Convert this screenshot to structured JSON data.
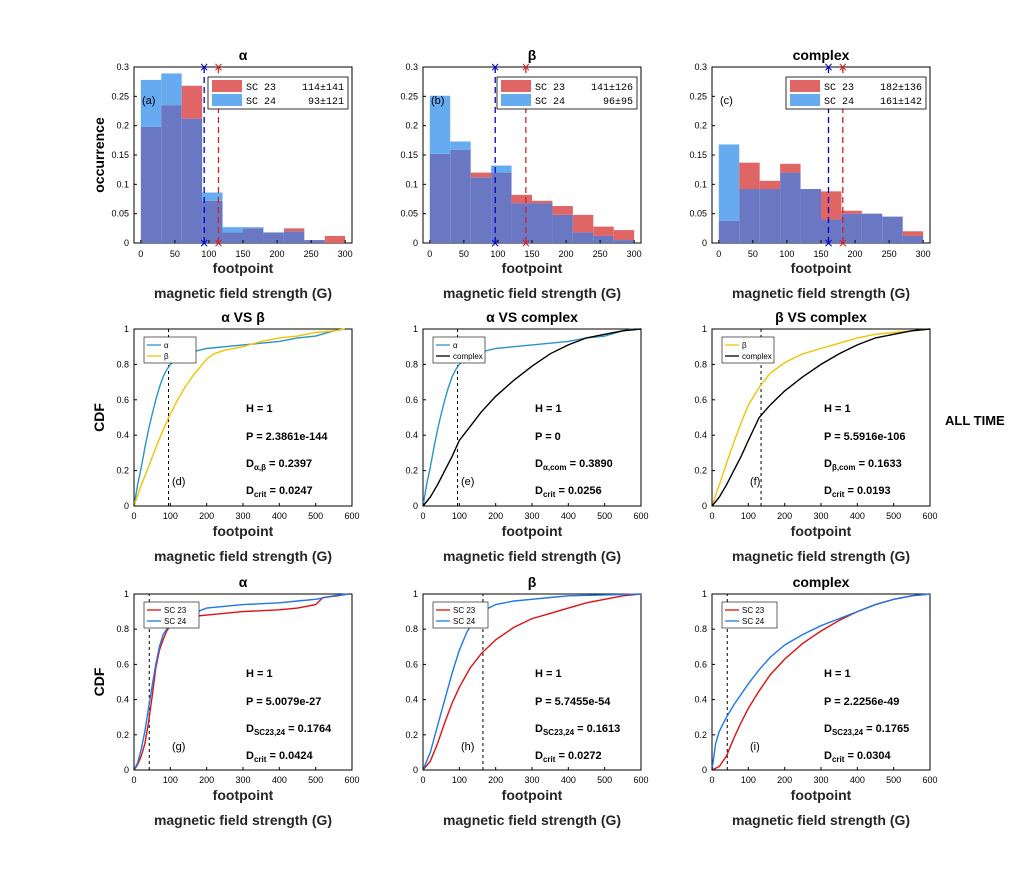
{
  "side_label": "ALL TIME",
  "colors": {
    "sc23_bar": "#e06666",
    "sc24_bar": "#66aaf0",
    "overlap": "#6a78c4",
    "blue_line": "#0000cc",
    "red_line": "#d62020",
    "alpha_cdf": "#2b93c8",
    "beta_cdf": "#f2c300",
    "complex_cdf": "#000000",
    "sc23_cdf": "#e01010",
    "sc24_cdf": "#1e78e8"
  },
  "chart_data": [
    {
      "type": "bar",
      "id": "a",
      "title": "α",
      "panel_label": "(a)",
      "xlabel": "footpoint",
      "xlabel2": "magnetic field strength (G)",
      "ylabel": "occurrence",
      "xlim": [
        -10,
        310
      ],
      "ylim": [
        0,
        0.3
      ],
      "xticks": [
        "0",
        "50",
        "100",
        "150",
        "200",
        "250",
        "300"
      ],
      "yticks": [
        "0",
        "0.05",
        "0.1",
        "0.15",
        "0.2",
        "0.25",
        "0.3"
      ],
      "bin_edges": [
        0,
        30,
        60,
        90,
        120,
        150,
        180,
        210,
        240,
        270,
        300
      ],
      "series": [
        {
          "name": "SC 23",
          "values": [
            0.198,
            0.235,
            0.268,
            0.072,
            0.018,
            0.025,
            0.018,
            0.025,
            0.005,
            0.012
          ]
        },
        {
          "name": "SC 24",
          "values": [
            0.278,
            0.289,
            0.212,
            0.086,
            0.027,
            0.027,
            0.018,
            0.02,
            0.005,
            0
          ]
        }
      ],
      "legend": [
        {
          "label": "SC 23",
          "value": "114±141"
        },
        {
          "label": "SC 24",
          "value": "93±121"
        }
      ],
      "mean_lines": [
        {
          "series": "SC 24",
          "x": 93
        },
        {
          "series": "SC 23",
          "x": 114
        }
      ]
    },
    {
      "type": "bar",
      "id": "b",
      "title": "β",
      "panel_label": "(b)",
      "xlabel": "footpoint",
      "xlabel2": "magnetic field strength (G)",
      "ylabel": "",
      "xlim": [
        -10,
        310
      ],
      "ylim": [
        0,
        0.3
      ],
      "xticks": [
        "0",
        "50",
        "100",
        "150",
        "200",
        "250",
        "300"
      ],
      "yticks": [
        "0",
        "0.05",
        "0.1",
        "0.15",
        "0.2",
        "0.25",
        "0.3"
      ],
      "bin_edges": [
        0,
        30,
        60,
        90,
        120,
        150,
        180,
        210,
        240,
        270,
        300
      ],
      "series": [
        {
          "name": "SC 23",
          "values": [
            0.152,
            0.159,
            0.12,
            0.12,
            0.082,
            0.072,
            0.063,
            0.048,
            0.028,
            0.022
          ]
        },
        {
          "name": "SC 24",
          "values": [
            0.251,
            0.173,
            0.112,
            0.132,
            0.068,
            0.068,
            0.048,
            0.018,
            0.012,
            0.005
          ]
        }
      ],
      "legend": [
        {
          "label": "SC 23",
          "value": "141±126"
        },
        {
          "label": "SC 24",
          "value": "96±95"
        }
      ],
      "mean_lines": [
        {
          "series": "SC 24",
          "x": 96
        },
        {
          "series": "SC 23",
          "x": 141
        }
      ]
    },
    {
      "type": "bar",
      "id": "c",
      "title": "complex",
      "panel_label": "(c)",
      "xlabel": "footpoint",
      "xlabel2": "magnetic field strength (G)",
      "ylabel": "",
      "xlim": [
        -10,
        310
      ],
      "ylim": [
        0,
        0.3
      ],
      "xticks": [
        "0",
        "50",
        "100",
        "150",
        "200",
        "250",
        "300"
      ],
      "yticks": [
        "0",
        "0.05",
        "0.1",
        "0.15",
        "0.2",
        "0.25",
        "0.3"
      ],
      "bin_edges": [
        0,
        30,
        60,
        90,
        120,
        150,
        180,
        210,
        240,
        270,
        300
      ],
      "series": [
        {
          "name": "SC 23",
          "values": [
            0.038,
            0.137,
            0.106,
            0.135,
            0.092,
            0.088,
            0.055,
            0.05,
            0.045,
            0.02
          ]
        },
        {
          "name": "SC 24",
          "values": [
            0.168,
            0.092,
            0.092,
            0.12,
            0.092,
            0.04,
            0.05,
            0.05,
            0.045,
            0.012
          ]
        }
      ],
      "legend": [
        {
          "label": "SC 23",
          "value": "182±136"
        },
        {
          "label": "SC 24",
          "value": "161±142"
        }
      ],
      "mean_lines": [
        {
          "series": "SC 24",
          "x": 161
        },
        {
          "series": "SC 23",
          "x": 182
        }
      ]
    },
    {
      "type": "line",
      "id": "d",
      "title": "α VS β",
      "panel_label": "(d)",
      "xlabel": "footpoint",
      "xlabel2": "magnetic field strength (G)",
      "ylabel": "CDF",
      "xlim": [
        0,
        600
      ],
      "ylim": [
        0,
        1
      ],
      "xticks": [
        "0",
        "100",
        "200",
        "300",
        "400",
        "500",
        "600"
      ],
      "yticks": [
        "0",
        "0.2",
        "0.4",
        "0.6",
        "0.8",
        "1"
      ],
      "vline": 95,
      "series": [
        {
          "name": "α",
          "color_key": "alpha_cdf",
          "x": [
            0,
            10,
            20,
            30,
            40,
            50,
            60,
            70,
            80,
            90,
            100,
            110,
            120,
            140,
            160,
            180,
            200,
            250,
            300,
            350,
            400,
            450,
            500,
            550,
            580
          ],
          "y": [
            0,
            0.12,
            0.22,
            0.33,
            0.43,
            0.52,
            0.6,
            0.67,
            0.73,
            0.77,
            0.8,
            0.82,
            0.84,
            0.86,
            0.87,
            0.88,
            0.89,
            0.9,
            0.91,
            0.92,
            0.93,
            0.95,
            0.96,
            0.99,
            1.0
          ]
        },
        {
          "name": "β",
          "color_key": "beta_cdf",
          "x": [
            0,
            10,
            20,
            40,
            60,
            80,
            100,
            120,
            140,
            160,
            180,
            200,
            220,
            250,
            300,
            350,
            400,
            450,
            500,
            550,
            580
          ],
          "y": [
            0,
            0.06,
            0.12,
            0.22,
            0.33,
            0.43,
            0.52,
            0.6,
            0.67,
            0.73,
            0.78,
            0.83,
            0.86,
            0.88,
            0.9,
            0.93,
            0.95,
            0.96,
            0.98,
            0.99,
            1.0
          ]
        }
      ],
      "stats": {
        "H": "H = 1",
        "P": "P = 2.3861e-144",
        "D": "D",
        "Dsub": "α,β",
        "Dval": " = 0.2397",
        "Dc": "D",
        "Dcsub": "crit",
        "Dcval": " = 0.0247"
      }
    },
    {
      "type": "line",
      "id": "e",
      "title": "α VS complex",
      "panel_label": "(e)",
      "xlabel": "footpoint",
      "xlabel2": "magnetic field strength (G)",
      "ylabel": "",
      "xlim": [
        0,
        600
      ],
      "ylim": [
        0,
        1
      ],
      "xticks": [
        "0",
        "100",
        "200",
        "300",
        "400",
        "500",
        "600"
      ],
      "yticks": [
        "0",
        "0.2",
        "0.4",
        "0.6",
        "0.8",
        "1"
      ],
      "vline": 95,
      "series": [
        {
          "name": "α",
          "color_key": "alpha_cdf",
          "x": [
            0,
            10,
            20,
            30,
            40,
            50,
            60,
            70,
            80,
            90,
            100,
            110,
            120,
            140,
            160,
            180,
            200,
            250,
            300,
            350,
            400,
            450,
            500,
            550,
            580
          ],
          "y": [
            0,
            0.12,
            0.22,
            0.33,
            0.43,
            0.52,
            0.6,
            0.67,
            0.73,
            0.77,
            0.8,
            0.82,
            0.84,
            0.86,
            0.87,
            0.88,
            0.89,
            0.9,
            0.91,
            0.92,
            0.93,
            0.95,
            0.96,
            0.99,
            1.0
          ]
        },
        {
          "name": "complex",
          "color_key": "complex_cdf",
          "x": [
            0,
            20,
            40,
            60,
            80,
            100,
            130,
            160,
            200,
            250,
            300,
            350,
            400,
            450,
            500,
            550,
            600
          ],
          "y": [
            0,
            0.05,
            0.12,
            0.2,
            0.28,
            0.37,
            0.45,
            0.53,
            0.62,
            0.71,
            0.79,
            0.86,
            0.91,
            0.95,
            0.97,
            0.99,
            1.0
          ]
        }
      ],
      "stats": {
        "H": "H = 1",
        "P": "P = 0",
        "D": "D",
        "Dsub": "α,com",
        "Dval": " = 0.3890",
        "Dc": "D",
        "Dcsub": "crit",
        "Dcval": " = 0.0256"
      }
    },
    {
      "type": "line",
      "id": "f",
      "title": "β VS complex",
      "panel_label": "(f)",
      "xlabel": "footpoint",
      "xlabel2": "magnetic field strength (G)",
      "ylabel": "",
      "xlim": [
        0,
        600
      ],
      "ylim": [
        0,
        1
      ],
      "xticks": [
        "0",
        "100",
        "200",
        "300",
        "400",
        "500",
        "600"
      ],
      "yticks": [
        "0",
        "0.2",
        "0.4",
        "0.6",
        "0.8",
        "1"
      ],
      "vline": 135,
      "series": [
        {
          "name": "β",
          "color_key": "beta_cdf",
          "x": [
            0,
            10,
            20,
            40,
            60,
            80,
            100,
            130,
            160,
            200,
            250,
            300,
            350,
            400,
            450,
            500,
            550,
            600
          ],
          "y": [
            0,
            0.06,
            0.12,
            0.24,
            0.36,
            0.47,
            0.57,
            0.67,
            0.75,
            0.81,
            0.86,
            0.89,
            0.92,
            0.95,
            0.97,
            0.98,
            0.99,
            1.0
          ]
        },
        {
          "name": "complex",
          "color_key": "complex_cdf",
          "x": [
            0,
            20,
            40,
            60,
            80,
            100,
            130,
            160,
            200,
            250,
            300,
            350,
            400,
            450,
            500,
            550,
            600
          ],
          "y": [
            0,
            0.05,
            0.12,
            0.2,
            0.28,
            0.37,
            0.5,
            0.57,
            0.65,
            0.73,
            0.8,
            0.86,
            0.91,
            0.95,
            0.97,
            0.99,
            1.0
          ]
        }
      ],
      "stats": {
        "H": "H = 1",
        "P": "P = 5.5916e-106",
        "D": "D",
        "Dsub": "β,com",
        "Dval": " = 0.1633",
        "Dc": "D",
        "Dcsub": "crit",
        "Dcval": " = 0.0193"
      }
    },
    {
      "type": "line",
      "id": "g",
      "title": "α",
      "panel_label": "(g)",
      "xlabel": "footpoint",
      "xlabel2": "magnetic field strength (G)",
      "ylabel": "CDF",
      "xlim": [
        0,
        600
      ],
      "ylim": [
        0,
        1
      ],
      "xticks": [
        "0",
        "100",
        "200",
        "300",
        "400",
        "500",
        "600"
      ],
      "yticks": [
        "0",
        "0.2",
        "0.4",
        "0.6",
        "0.8",
        "1"
      ],
      "vline": 42,
      "series": [
        {
          "name": "SC 23",
          "color_key": "sc23_cdf",
          "x": [
            0,
            10,
            20,
            30,
            40,
            50,
            60,
            70,
            80,
            90,
            100,
            120,
            150,
            200,
            300,
            400,
            450,
            500,
            520,
            560,
            590
          ],
          "y": [
            0,
            0.03,
            0.08,
            0.15,
            0.27,
            0.42,
            0.58,
            0.68,
            0.74,
            0.79,
            0.82,
            0.85,
            0.87,
            0.88,
            0.9,
            0.91,
            0.92,
            0.94,
            0.98,
            0.99,
            1.0
          ]
        },
        {
          "name": "SC 24",
          "color_key": "sc24_cdf",
          "x": [
            0,
            10,
            20,
            30,
            40,
            50,
            60,
            70,
            80,
            90,
            100,
            120,
            150,
            200,
            300,
            400,
            450,
            500,
            550,
            590
          ],
          "y": [
            0,
            0.04,
            0.12,
            0.22,
            0.35,
            0.48,
            0.6,
            0.7,
            0.77,
            0.8,
            0.82,
            0.84,
            0.88,
            0.92,
            0.94,
            0.95,
            0.96,
            0.97,
            0.99,
            1.0
          ]
        }
      ],
      "stats": {
        "H": "H = 1",
        "P": "P = 5.0079e-27",
        "D": "D",
        "Dsub": "SC23,24",
        "Dval": " = 0.1764",
        "Dc": "D",
        "Dcsub": "crit",
        "Dcval": " = 0.0424"
      }
    },
    {
      "type": "line",
      "id": "h",
      "title": "β",
      "panel_label": "(h)",
      "xlabel": "footpoint",
      "xlabel2": "magnetic field strength (G)",
      "ylabel": "",
      "xlim": [
        0,
        600
      ],
      "ylim": [
        0,
        1
      ],
      "xticks": [
        "0",
        "100",
        "200",
        "300",
        "400",
        "500",
        "600"
      ],
      "yticks": [
        "0",
        "0.2",
        "0.4",
        "0.6",
        "0.8",
        "1"
      ],
      "vline": 165,
      "series": [
        {
          "name": "SC 23",
          "color_key": "sc23_cdf",
          "x": [
            0,
            20,
            40,
            60,
            80,
            100,
            130,
            160,
            200,
            250,
            300,
            350,
            400,
            450,
            500,
            550,
            600
          ],
          "y": [
            0,
            0.05,
            0.15,
            0.27,
            0.38,
            0.47,
            0.58,
            0.66,
            0.74,
            0.81,
            0.86,
            0.89,
            0.92,
            0.95,
            0.97,
            0.99,
            1.0
          ]
        },
        {
          "name": "SC 24",
          "color_key": "sc24_cdf",
          "x": [
            0,
            20,
            40,
            60,
            80,
            100,
            120,
            140,
            160,
            180,
            200,
            250,
            300,
            350,
            400,
            500,
            600
          ],
          "y": [
            0,
            0.1,
            0.25,
            0.4,
            0.55,
            0.68,
            0.78,
            0.85,
            0.89,
            0.92,
            0.94,
            0.96,
            0.97,
            0.98,
            0.99,
            0.995,
            1.0
          ]
        }
      ],
      "stats": {
        "H": "H = 1",
        "P": "P = 5.7455e-54",
        "D": "D",
        "Dsub": "SC23,24",
        "Dval": " = 0.1613",
        "Dc": "D",
        "Dcsub": "crit",
        "Dcval": " = 0.0272"
      }
    },
    {
      "type": "line",
      "id": "i",
      "title": "complex",
      "panel_label": "(i)",
      "xlabel": "footpoint",
      "xlabel2": "magnetic field strength (G)",
      "ylabel": "",
      "xlim": [
        0,
        600
      ],
      "ylim": [
        0,
        1
      ],
      "xticks": [
        "0",
        "100",
        "200",
        "300",
        "400",
        "500",
        "600"
      ],
      "yticks": [
        "0",
        "0.2",
        "0.4",
        "0.6",
        "0.8",
        "1"
      ],
      "vline": 42,
      "series": [
        {
          "name": "SC 23",
          "color_key": "sc23_cdf",
          "x": [
            0,
            20,
            40,
            60,
            80,
            100,
            130,
            160,
            200,
            250,
            300,
            350,
            400,
            450,
            500,
            550,
            600
          ],
          "y": [
            0,
            0.02,
            0.08,
            0.18,
            0.27,
            0.35,
            0.45,
            0.54,
            0.63,
            0.72,
            0.79,
            0.85,
            0.9,
            0.94,
            0.97,
            0.99,
            1.0
          ]
        },
        {
          "name": "SC 24",
          "color_key": "sc24_cdf",
          "x": [
            0,
            10,
            20,
            40,
            60,
            80,
            100,
            130,
            160,
            200,
            250,
            300,
            350,
            400,
            450,
            500,
            550,
            600
          ],
          "y": [
            0,
            0.15,
            0.22,
            0.3,
            0.37,
            0.43,
            0.49,
            0.57,
            0.64,
            0.71,
            0.77,
            0.82,
            0.86,
            0.9,
            0.94,
            0.97,
            0.99,
            1.0
          ]
        }
      ],
      "stats": {
        "H": "H = 1",
        "P": "P = 2.2256e-49",
        "D": "D",
        "Dsub": "SC23,24",
        "Dval": " = 0.1765",
        "Dc": "D",
        "Dcsub": "crit",
        "Dcval": " = 0.0304"
      }
    }
  ]
}
